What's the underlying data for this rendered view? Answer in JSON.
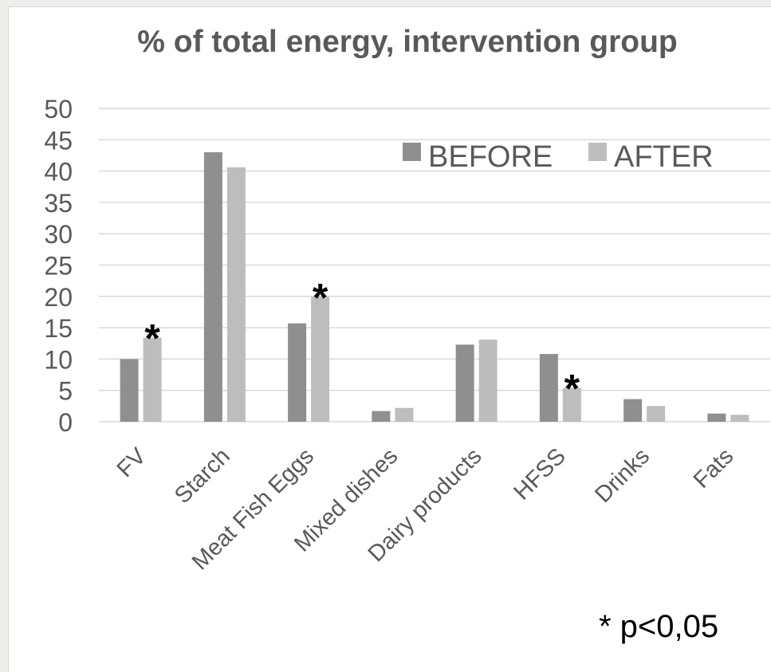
{
  "chart_data": {
    "type": "bar",
    "title": "% of total energy, intervention group",
    "categories": [
      "FV",
      "Starch",
      "Meat Fish Eggs",
      "Mixed dishes",
      "Dairy products",
      "HFSS",
      "Drinks",
      "Fats"
    ],
    "series": [
      {
        "name": "BEFORE",
        "values": [
          10,
          43,
          15.7,
          1.7,
          12.3,
          10.8,
          3.6,
          1.3
        ]
      },
      {
        "name": "AFTER",
        "values": [
          13.4,
          40.6,
          19.9,
          2.2,
          13.1,
          5.4,
          2.5,
          1.1
        ]
      }
    ],
    "significant": [
      {
        "category": "FV",
        "series": "AFTER",
        "marker": "*"
      },
      {
        "category": "Meat Fish Eggs",
        "series": "AFTER",
        "marker": "*"
      },
      {
        "category": "HFSS",
        "series": "AFTER",
        "marker": "*"
      }
    ],
    "ylim": [
      0,
      50
    ],
    "yticks": [
      0,
      5,
      10,
      15,
      20,
      25,
      30,
      35,
      40,
      45,
      50
    ],
    "grid": true,
    "legend_position": "top-right",
    "footnote": "* p<0,05",
    "colors": {
      "BEFORE": "#8f8f8f",
      "AFTER": "#bdbdbd",
      "grid": "#d9d9d9",
      "text": "#595959"
    }
  }
}
